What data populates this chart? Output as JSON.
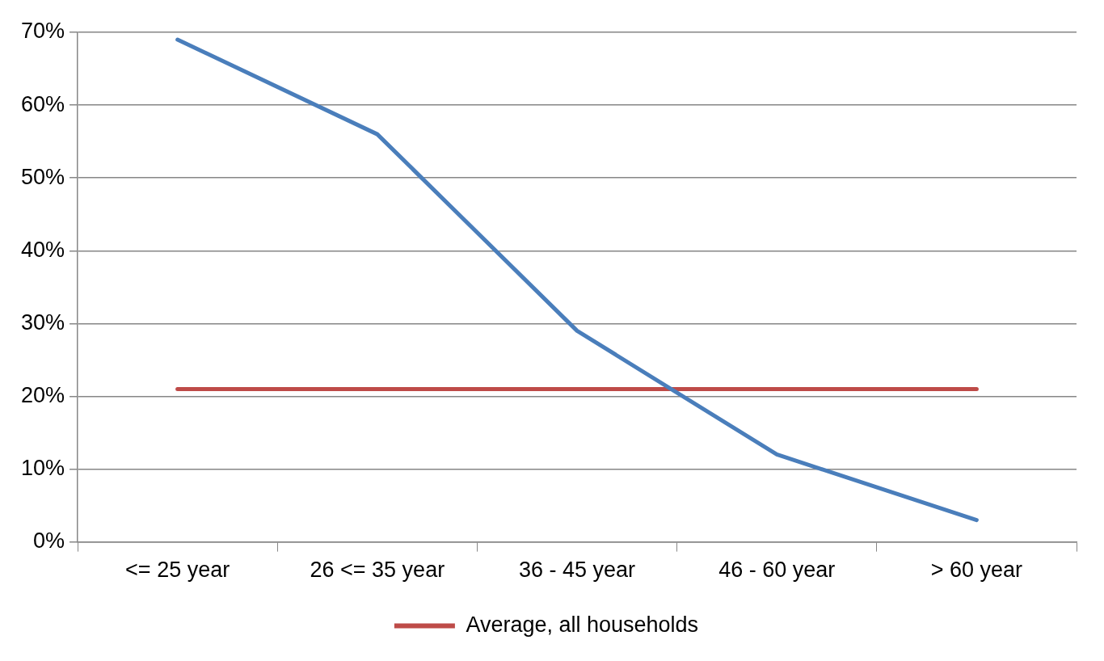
{
  "chart_data": {
    "type": "line",
    "categories": [
      "<= 25 year",
      "26 <= 35 year",
      "36 - 45 year",
      "46 - 60 year",
      "> 60 year"
    ],
    "series": [
      {
        "color": "#4a7ebb",
        "values": [
          69,
          56,
          29,
          12,
          3
        ]
      },
      {
        "name": "Average, all households",
        "color": "#be4b48",
        "values": [
          21,
          21,
          21,
          21,
          21
        ]
      }
    ],
    "ylim": [
      0,
      70
    ],
    "yticks": [
      {
        "value": 0,
        "label": "0%"
      },
      {
        "value": 10,
        "label": "10%"
      },
      {
        "value": 20,
        "label": "20%"
      },
      {
        "value": 30,
        "label": "30%"
      },
      {
        "value": 40,
        "label": "40%"
      },
      {
        "value": 50,
        "label": "50%"
      },
      {
        "value": 60,
        "label": "60%"
      },
      {
        "value": 70,
        "label": "70%"
      }
    ],
    "grid": "y",
    "legend": "bottom",
    "marker": "none",
    "line_style": "solid"
  }
}
